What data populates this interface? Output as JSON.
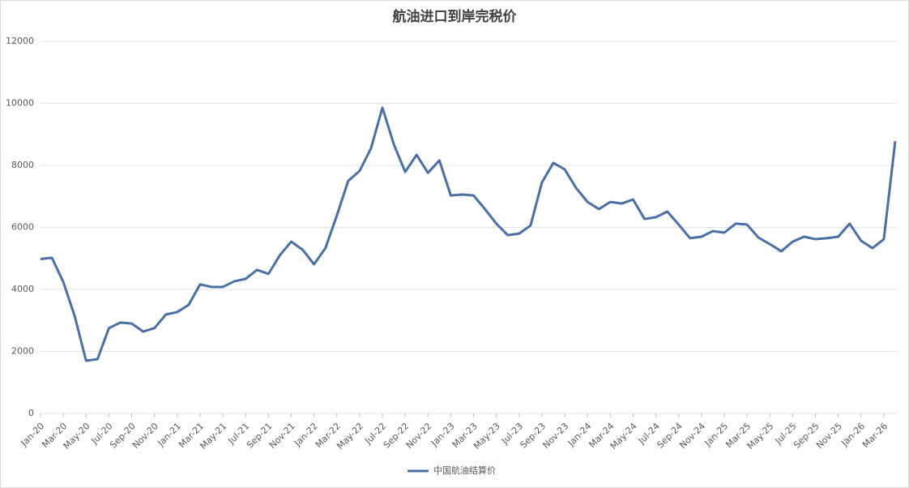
{
  "chart_data": {
    "type": "line",
    "title": "航油进口到岸完税价",
    "categories": [
      "Jan-20",
      null,
      "Mar-20",
      null,
      "May-20",
      null,
      "Jul-20",
      null,
      "Sep-20",
      null,
      "Nov-20",
      null,
      "Jan-21",
      null,
      "Mar-21",
      null,
      "May-21",
      null,
      "Jul-21",
      null,
      "Sep-21",
      null,
      "Nov-21",
      null,
      "Jan-22",
      null,
      "Mar-22",
      null,
      "May-22",
      null,
      "Jul-22",
      null,
      "Sep-22",
      null,
      "Nov-22",
      null,
      "Jan-23",
      null,
      "Mar-23",
      null,
      "May-23",
      null,
      "Jul-23",
      null,
      "Sep-23",
      null,
      "Nov-23",
      null,
      "Jan-24",
      null,
      "Mar-24",
      null,
      "May-24",
      null,
      "Jul-24",
      null,
      "Sep-24",
      null,
      "Nov-24",
      null,
      "Jan-25",
      null,
      "Mar-25",
      null,
      "May-25",
      null,
      "Jul-25",
      null,
      "Sep-25",
      null,
      "Nov-25",
      null,
      "Jan-26",
      null,
      "Mar-26",
      null
    ],
    "series": [
      {
        "name": "中国航油结算价",
        "color": "#4a6fa5",
        "values": [
          4980,
          5020,
          4240,
          3140,
          1700,
          1750,
          2750,
          2930,
          2900,
          2640,
          2750,
          3190,
          3270,
          3500,
          4160,
          4080,
          4080,
          4260,
          4340,
          4630,
          4500,
          5100,
          5540,
          5280,
          4810,
          5330,
          6380,
          7500,
          7820,
          8550,
          9860,
          8680,
          7790,
          8340,
          7760,
          8160,
          7030,
          7060,
          7030,
          6590,
          6120,
          5750,
          5800,
          6060,
          7450,
          8080,
          7870,
          7270,
          6820,
          6590,
          6820,
          6770,
          6900,
          6270,
          6330,
          6510,
          6090,
          5650,
          5700,
          5880,
          5830,
          6120,
          6090,
          5670,
          5460,
          5230,
          5540,
          5700,
          5620,
          5650,
          5700,
          6120,
          5570,
          5330,
          5620,
          8780
        ]
      }
    ],
    "ylim": [
      0,
      12000
    ],
    "yticks": [
      0,
      2000,
      4000,
      6000,
      8000,
      10000,
      12000
    ],
    "grid": true,
    "legend": "bottom"
  }
}
